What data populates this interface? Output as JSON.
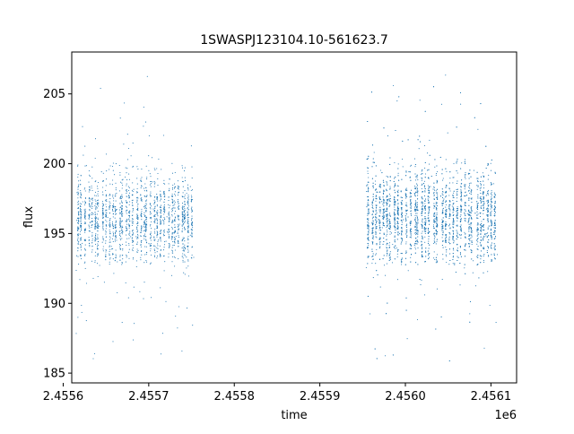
{
  "chart_data": {
    "type": "scatter",
    "title": "1SWASPJ123104.10-561623.7",
    "xlabel": "time",
    "ylabel": "flux",
    "x_offset_label": "1e6",
    "xlim": [
      2.45561,
      2.45613
    ],
    "ylim": [
      184.3,
      208.0
    ],
    "x_ticks": [
      2.4556,
      2.4557,
      2.4558,
      2.4559,
      2.456,
      2.4561
    ],
    "x_tick_labels": [
      "2.4556",
      "2.4557",
      "2.4558",
      "2.4559",
      "2.4560",
      "2.4561"
    ],
    "y_ticks": [
      185,
      190,
      195,
      200,
      205
    ],
    "y_tick_labels": [
      "185",
      "190",
      "195",
      "200",
      "205"
    ],
    "grid": false,
    "marker_color": "#1f77b4",
    "series": [
      {
        "observing_segments": [
          {
            "x_start": 2.455615,
            "x_end": 2.455753,
            "y_center": 196.0,
            "core_spread": 2.8,
            "outlier_low": 186.0,
            "outlier_high": 206.8,
            "n_points": 1900
          },
          {
            "x_start": 2.455954,
            "x_end": 2.456108,
            "y_center": 196.2,
            "core_spread": 3.0,
            "outlier_low": 185.8,
            "outlier_high": 206.9,
            "n_points": 3300
          }
        ]
      }
    ]
  }
}
